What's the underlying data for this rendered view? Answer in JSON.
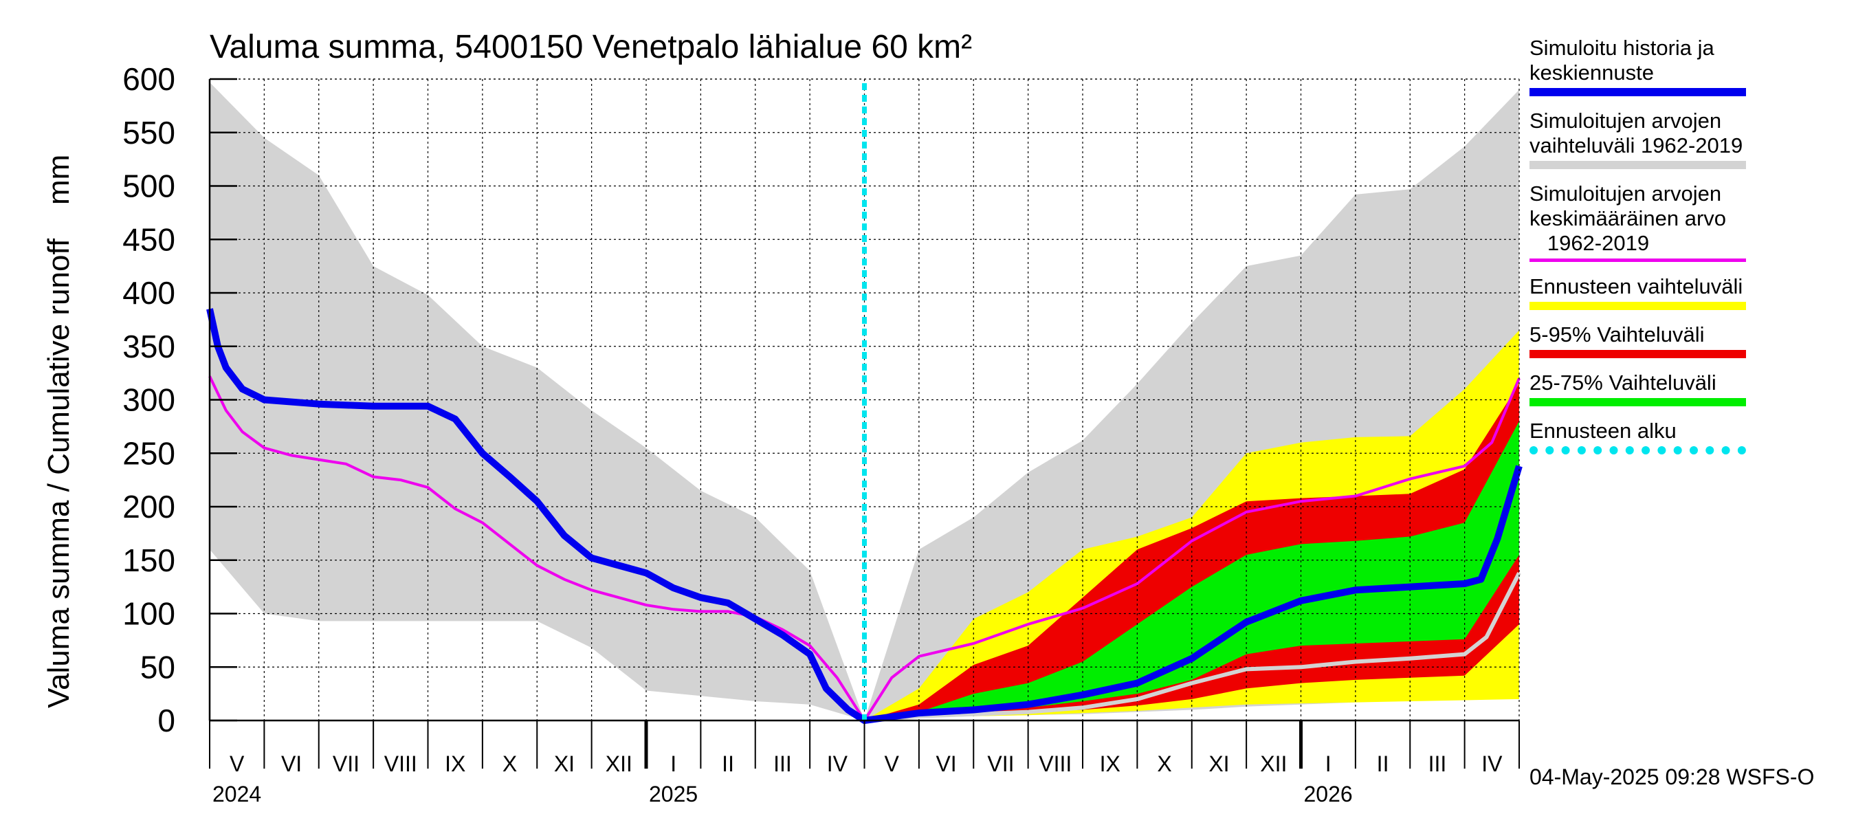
{
  "chart_data": {
    "type": "area",
    "title": "Valuma summa, 5400150 Venetpalo lähialue 60 km²",
    "ylabel": "Valuma summa / Cumulative runoff    mm",
    "ylim": [
      0,
      600
    ],
    "yticks": [
      0,
      50,
      100,
      150,
      200,
      250,
      300,
      350,
      400,
      450,
      500,
      550,
      600
    ],
    "xlim": [
      0,
      24
    ],
    "forecast_start": 12,
    "months": [
      "V",
      "VI",
      "VII",
      "VIII",
      "IX",
      "X",
      "XI",
      "XII",
      "I",
      "II",
      "III",
      "IV",
      "V",
      "VI",
      "VII",
      "VIII",
      "IX",
      "X",
      "XI",
      "XII",
      "I",
      "II",
      "III",
      "IV"
    ],
    "years": [
      {
        "label": "2024",
        "at": 0
      },
      {
        "label": "2025",
        "at": 8
      },
      {
        "label": "2026",
        "at": 20
      }
    ],
    "x": [
      0,
      1,
      2,
      3,
      4,
      5,
      6,
      7,
      8,
      9,
      10,
      11,
      12,
      13,
      14,
      15,
      16,
      17,
      18,
      19,
      20,
      21,
      22,
      23,
      24
    ],
    "history_range": {
      "upper": [
        597,
        545,
        510,
        425,
        398,
        350,
        330,
        290,
        255,
        215,
        190,
        140,
        0,
        160,
        190,
        232,
        262,
        315,
        372,
        425,
        435,
        492,
        497,
        537,
        590
      ],
      "lower": [
        160,
        100,
        93,
        93,
        93,
        93,
        93,
        68,
        28,
        23,
        18,
        15,
        0,
        3,
        4,
        5,
        6,
        8,
        10,
        13,
        15,
        17,
        19,
        21,
        23
      ]
    },
    "forecast_full_range": {
      "x": [
        12,
        13,
        14,
        15,
        16,
        17,
        18,
        19,
        20,
        21,
        22,
        23,
        24
      ],
      "upper": [
        0,
        30,
        95,
        120,
        160,
        172,
        190,
        250,
        260,
        265,
        266,
        310,
        365
      ],
      "lower": [
        0,
        3,
        4,
        5,
        7,
        9,
        12,
        15,
        16,
        17,
        18,
        19,
        20
      ]
    },
    "forecast_5_95": {
      "x": [
        12,
        13,
        14,
        15,
        16,
        17,
        18,
        19,
        20,
        21,
        22,
        23,
        24
      ],
      "upper": [
        0,
        15,
        52,
        70,
        115,
        160,
        180,
        205,
        208,
        210,
        212,
        235,
        315
      ],
      "lower": [
        0,
        3,
        5,
        8,
        10,
        14,
        20,
        30,
        35,
        38,
        40,
        42,
        90
      ]
    },
    "forecast_25_75": {
      "x": [
        12,
        13,
        14,
        15,
        16,
        17,
        18,
        19,
        20,
        21,
        22,
        23,
        24
      ],
      "upper": [
        0,
        8,
        25,
        35,
        55,
        90,
        125,
        155,
        165,
        168,
        172,
        185,
        280
      ],
      "lower": [
        0,
        5,
        8,
        12,
        18,
        25,
        38,
        62,
        70,
        72,
        74,
        76,
        155
      ]
    },
    "series": [
      {
        "name": "Simuloitu historia ja keskiennuste",
        "x": [
          0,
          0.15,
          0.3,
          0.6,
          1,
          2,
          3,
          4,
          4.5,
          5,
          5.5,
          6,
          6.5,
          7,
          7.5,
          8,
          8.5,
          9,
          9.5,
          10,
          10.5,
          11,
          11.3,
          11.7,
          12,
          13,
          14,
          15,
          16,
          17,
          18,
          19,
          20,
          21,
          22,
          23,
          23.3,
          23.6,
          24
        ],
        "values": [
          385,
          350,
          330,
          310,
          300,
          296,
          294,
          294,
          282,
          250,
          228,
          205,
          173,
          152,
          145,
          138,
          124,
          115,
          110,
          95,
          80,
          62,
          30,
          10,
          0,
          7,
          10,
          15,
          24,
          35,
          58,
          92,
          112,
          122,
          125,
          128,
          132,
          170,
          238
        ]
      },
      {
        "name": "Simuloitujen arvojen keskimääräinen arvo 1962-2019",
        "x": [
          0,
          0.3,
          0.6,
          1,
          1.5,
          2,
          2.5,
          3,
          3.5,
          4,
          4.5,
          5,
          5.5,
          6,
          6.5,
          7,
          7.5,
          8,
          8.5,
          9,
          9.5,
          10,
          10.5,
          11,
          11.5,
          12,
          12.5,
          13,
          14,
          15,
          16,
          17,
          18,
          19,
          20,
          21,
          22,
          23,
          23.5,
          24
        ],
        "values": [
          322,
          290,
          270,
          255,
          248,
          244,
          240,
          228,
          225,
          218,
          198,
          185,
          165,
          145,
          132,
          122,
          115,
          108,
          104,
          102,
          102,
          97,
          85,
          70,
          40,
          0,
          40,
          60,
          72,
          90,
          105,
          128,
          168,
          195,
          205,
          210,
          226,
          238,
          260,
          320
        ]
      },
      {
        "name": "Median forecast",
        "x": [
          12,
          13,
          14,
          15,
          16,
          17,
          18,
          19,
          20,
          21,
          22,
          23,
          23.4,
          24
        ],
        "values": [
          0,
          4,
          6,
          8,
          12,
          20,
          35,
          48,
          50,
          55,
          58,
          62,
          78,
          138
        ]
      }
    ],
    "legend": [
      {
        "label": "Simuloitu historia ja\nkeskiennuste",
        "color": "#0000ee",
        "style": "solid"
      },
      {
        "label": "Simuloitujen arvojen\nvaihteluväli 1962-2019",
        "color": "#d3d3d3",
        "style": "solid"
      },
      {
        "label": "Simuloitujen arvojen\nkeskimääräinen arvo\n   1962-2019",
        "color": "#ee00ee",
        "style": "thin"
      },
      {
        "label": "Ennusteen vaihteluväli",
        "color": "#ffff00",
        "style": "solid"
      },
      {
        "label": "5-95% Vaihteluväli",
        "color": "#ee0000",
        "style": "solid"
      },
      {
        "label": "25-75% Vaihteluväli",
        "color": "#00ee00",
        "style": "solid"
      },
      {
        "label": "Ennusteen alku",
        "color": "#00e5ee",
        "style": "dotted"
      }
    ]
  },
  "footer": "04-May-2025 09:28 WSFS-O",
  "colors": {
    "history_range": "#d3d3d3",
    "full_range": "#ffff00",
    "range_5_95": "#ee0000",
    "range_25_75": "#00ee00",
    "main_line": "#0000ee",
    "mean_line": "#ee00ee",
    "median_line": "#d3d3d3",
    "forecast_marker": "#00e5ee"
  }
}
